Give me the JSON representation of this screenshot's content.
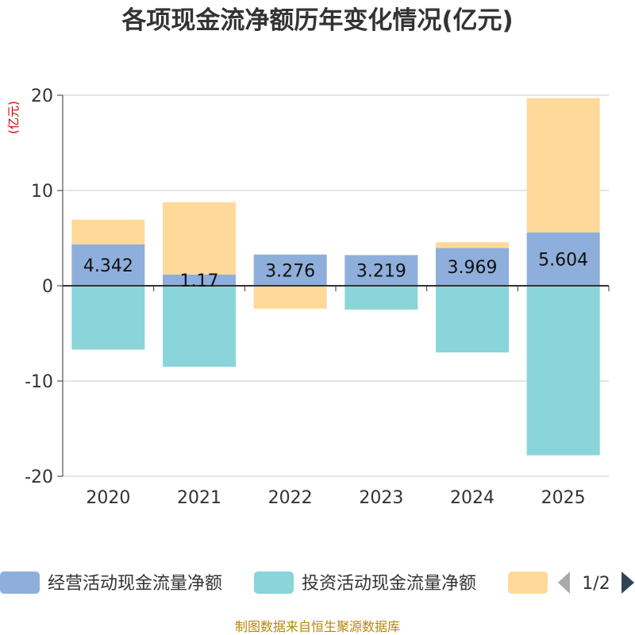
{
  "chart_data": {
    "type": "bar",
    "stacked": true,
    "title": "各项现金流净额历年变化情况(亿元)",
    "unit_label": "(亿元)",
    "categories": [
      "2020",
      "2021",
      "2022",
      "2023",
      "2024",
      "2025"
    ],
    "ylim": [
      -20,
      20
    ],
    "yticks": [
      20,
      10,
      0,
      -10,
      -20
    ],
    "series": [
      {
        "name": "经营活动现金流量净额",
        "color": "#8eaedb",
        "values": [
          4.342,
          1.17,
          3.276,
          3.219,
          3.969,
          5.604
        ],
        "labels": [
          "4.342",
          "1.17",
          "3.276",
          "3.219",
          "3.969",
          "5.604"
        ]
      },
      {
        "name": "投资活动现金流量净额",
        "color": "#89d5d9",
        "values": [
          -6.7,
          -8.5,
          0,
          -2.5,
          -7.0,
          -17.8
        ]
      },
      {
        "name": "",
        "color": "#ffd99a",
        "values": [
          2.6,
          7.6,
          -2.4,
          0,
          0.6,
          14.1
        ]
      }
    ]
  },
  "legend": {
    "page": "1/2"
  },
  "source": "制图数据来自恒生聚源数据库"
}
